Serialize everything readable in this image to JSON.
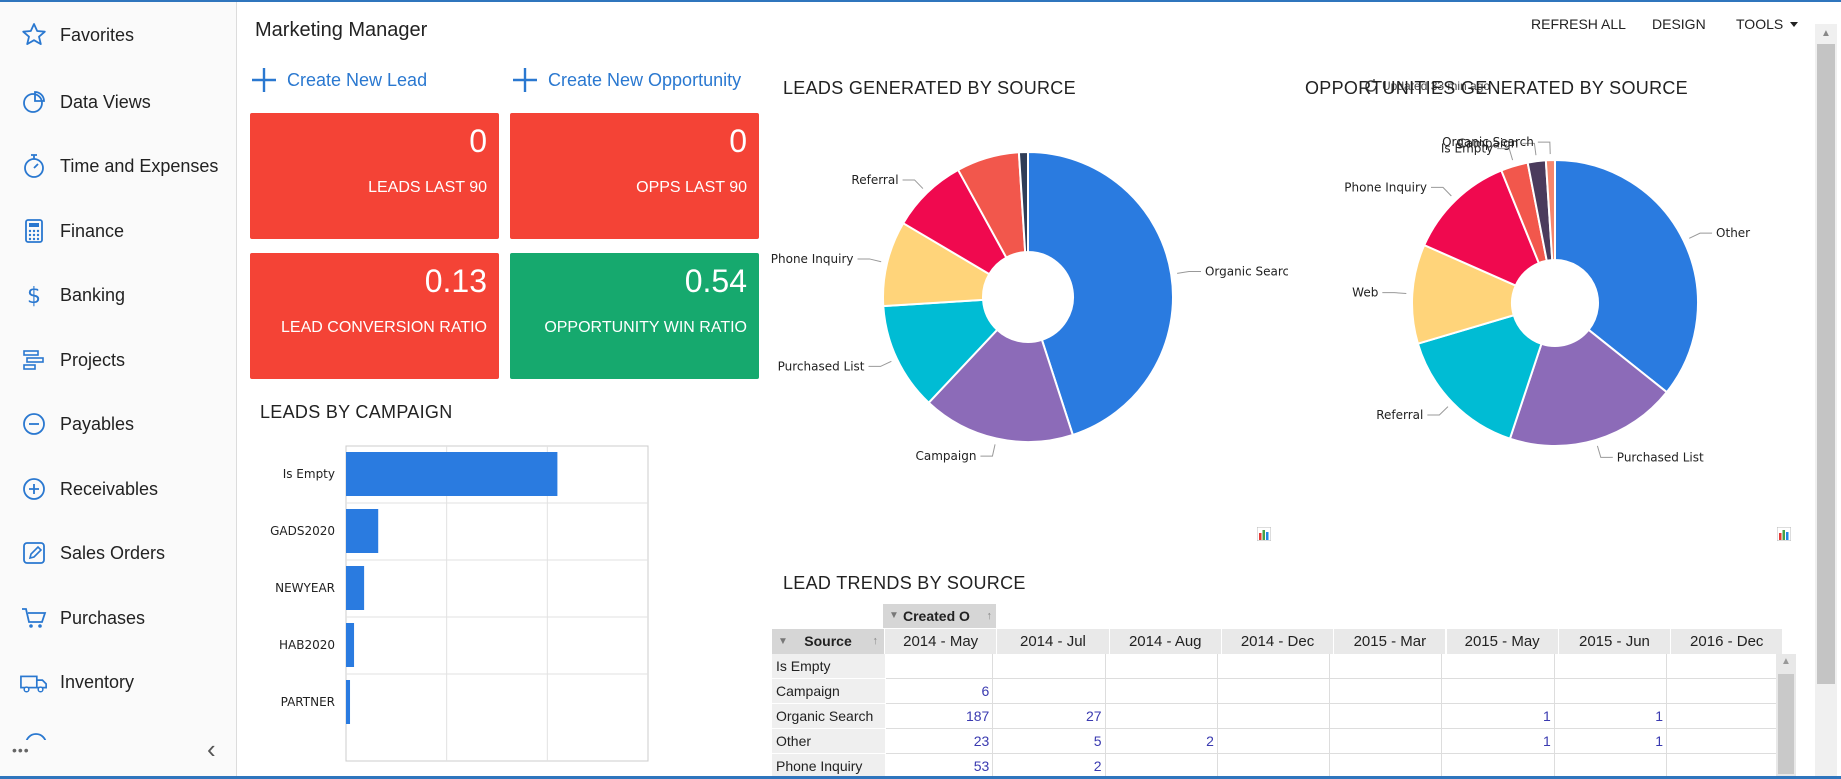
{
  "sidebar": {
    "items": [
      {
        "label": "Favorites",
        "icon": "star-icon"
      },
      {
        "label": "Data Views",
        "icon": "pie-chart-icon"
      },
      {
        "label": "Time and Expenses",
        "icon": "stopwatch-icon"
      },
      {
        "label": "Finance",
        "icon": "calculator-icon"
      },
      {
        "label": "Banking",
        "icon": "dollar-icon"
      },
      {
        "label": "Projects",
        "icon": "projects-icon"
      },
      {
        "label": "Payables",
        "icon": "minus-circle-icon"
      },
      {
        "label": "Receivables",
        "icon": "plus-circle-icon"
      },
      {
        "label": "Sales Orders",
        "icon": "edit-icon"
      },
      {
        "label": "Purchases",
        "icon": "cart-icon"
      },
      {
        "label": "Inventory",
        "icon": "truck-icon"
      }
    ],
    "more_label": "•••",
    "collapse_label": "‹"
  },
  "header": {
    "title": "Marketing Manager",
    "refresh_all": "REFRESH ALL",
    "design": "DESIGN",
    "tools": "TOOLS"
  },
  "actions": {
    "create_lead": "Create New Lead",
    "create_opportunity": "Create New Opportunity"
  },
  "kpis": [
    {
      "value": "0",
      "label": "LEADS LAST 90",
      "color": "#f44336"
    },
    {
      "value": "0",
      "label": "OPPS LAST 90",
      "color": "#f44336"
    },
    {
      "value": "0.13",
      "label": "LEAD CONVERSION RATIO",
      "color": "#f44336"
    },
    {
      "value": "0.54",
      "label": "OPPORTUNITY WIN RATIO",
      "color": "#16a96e"
    }
  ],
  "sections": {
    "leads_by_campaign": "LEADS BY CAMPAIGN",
    "leads_by_source": "LEADS GENERATED BY SOURCE",
    "opps_by_source": "OPPORTUNITIES GENERATED BY SOURCE",
    "lead_trends": "LEAD TRENDS BY SOURCE",
    "updated": "Updated 33 min ago"
  },
  "chart_data": [
    {
      "type": "bar",
      "orientation": "horizontal",
      "title": "LEADS BY CAMPAIGN",
      "categories": [
        "Is Empty",
        "GADS2020",
        "NEWYEAR",
        "HAB2020",
        "PARTNER"
      ],
      "values": [
        210,
        32,
        18,
        8,
        4
      ],
      "xlim": [
        0,
        300
      ],
      "color": "#2a7be0"
    },
    {
      "type": "pie",
      "title": "LEADS GENERATED BY SOURCE",
      "labels": [
        "Organic Search",
        "Campaign",
        "Purchased List",
        "Phone Inquiry",
        "Referral",
        "Other",
        ""
      ],
      "values": [
        45,
        17,
        12,
        9.5,
        8.5,
        7,
        1
      ],
      "colors": [
        "#2a7be0",
        "#8c6bb8",
        "#00bcd4",
        "#ffd47a",
        "#f0094f",
        "#f2574c",
        "#2f3d57"
      ]
    },
    {
      "type": "pie",
      "title": "OPPORTUNITIES GENERATED BY SOURCE",
      "labels": [
        "Other",
        "Purchased List",
        "Referral",
        "Web",
        "Phone Inquiry",
        "Is Empty",
        "Campaign",
        "Organic Search"
      ],
      "values": [
        35,
        19,
        15,
        11,
        12,
        3,
        2,
        1
      ],
      "colors": [
        "#2a7be0",
        "#8c6bb8",
        "#00bcd4",
        "#ffd47a",
        "#f0094f",
        "#f2574c",
        "#4a3b5c",
        "#f5866e"
      ]
    },
    {
      "type": "table",
      "title": "LEAD TRENDS BY SOURCE",
      "column_group": "Created O",
      "row_header": "Source",
      "columns": [
        "2014 - May",
        "2014 - Jul",
        "2014 - Aug",
        "2014 - Dec",
        "2015 - Mar",
        "2015 - May",
        "2015 - Jun",
        "2016 - Dec"
      ],
      "rows": [
        {
          "label": "Is Empty",
          "values": [
            "",
            "",
            "",
            "",
            "",
            "",
            "",
            ""
          ]
        },
        {
          "label": "Campaign",
          "values": [
            "6",
            "",
            "",
            "",
            "",
            "",
            "",
            ""
          ]
        },
        {
          "label": "Organic Search",
          "values": [
            "187",
            "27",
            "",
            "",
            "",
            "1",
            "1",
            ""
          ]
        },
        {
          "label": "Other",
          "values": [
            "23",
            "5",
            "2",
            "",
            "",
            "1",
            "1",
            ""
          ]
        },
        {
          "label": "Phone Inquiry",
          "values": [
            "53",
            "2",
            "",
            "",
            "",
            "",
            "",
            ""
          ]
        }
      ]
    }
  ]
}
